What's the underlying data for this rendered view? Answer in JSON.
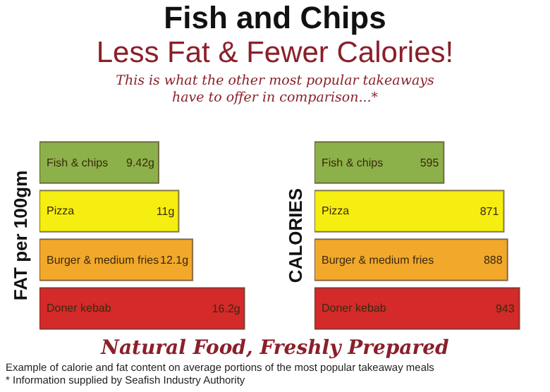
{
  "chart_data": [
    {
      "type": "bar",
      "orientation": "horizontal",
      "title": "Fish and Chips",
      "subtitle": "Less Fat & Fewer Calories!",
      "ylabel": "FAT per 100gm",
      "categories": [
        "Fish & chips",
        "Pizza",
        "Burger & medium fries",
        "Doner kebab"
      ],
      "values": [
        9.42,
        11,
        12.1,
        16.2
      ],
      "value_labels": [
        "9.42g",
        "11g",
        "12.1g",
        "16.2g"
      ],
      "colors": [
        "#8db14a",
        "#f5ee10",
        "#f2a82a",
        "#d42a2a"
      ],
      "annotations": [
        "This is what the other most popular takeaways have to offer in comparison...*",
        "Natural Food, Freshly Prepared",
        "Example of calorie and fat content on average portions of the most popular takeaway meals",
        "* Information supplied by Seafish Industry Authority"
      ]
    },
    {
      "type": "bar",
      "orientation": "horizontal",
      "ylabel": "CALORIES",
      "categories": [
        "Fish & chips",
        "Pizza",
        "Burger & medium fries",
        "Doner kebab"
      ],
      "values": [
        595,
        871,
        888,
        943
      ],
      "value_labels": [
        "595",
        "871",
        "888",
        "943"
      ],
      "colors": [
        "#8db14a",
        "#f5ee10",
        "#f2a82a",
        "#d42a2a"
      ]
    }
  ]
}
